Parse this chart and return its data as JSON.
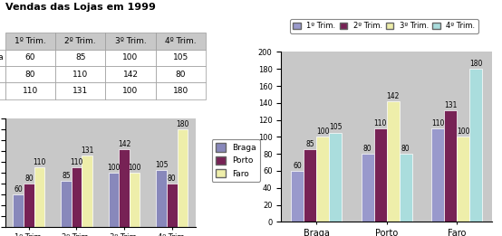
{
  "title": "Vendas das Lojas em 1999",
  "rows": [
    "Braga",
    "Porto",
    "Faro"
  ],
  "cols": [
    "1º Trim.",
    "2º Trim.",
    "3º Trim.",
    "4º Trim."
  ],
  "data": [
    [
      60,
      85,
      100,
      105
    ],
    [
      80,
      110,
      142,
      80
    ],
    [
      110,
      131,
      100,
      180
    ]
  ],
  "bar_colors_chart1": [
    "#8888bb",
    "#772255",
    "#eeeeaa"
  ],
  "bar_colors_chart2": [
    "#9999cc",
    "#772255",
    "#eeeeaa",
    "#aadddd"
  ],
  "legend1_labels": [
    "Braga",
    "Porto",
    "Faro"
  ],
  "legend2_labels": [
    "1º Trim.",
    "2º Trim.",
    "3º Trim.",
    "4º Trim."
  ],
  "ylim": [
    0,
    200
  ],
  "yticks": [
    0,
    20,
    40,
    60,
    80,
    100,
    120,
    140,
    160,
    180,
    200
  ],
  "chart1_xticks": [
    "1º Trim.",
    "2º Trim.",
    "3º Trim.",
    "4º Trim."
  ],
  "chart2_xticks": [
    "Braga",
    "Porto",
    "Faro"
  ],
  "bg_color": "#c8c8c8",
  "table_header_color": "#c8c8c8",
  "table_bg": "#ffffff"
}
